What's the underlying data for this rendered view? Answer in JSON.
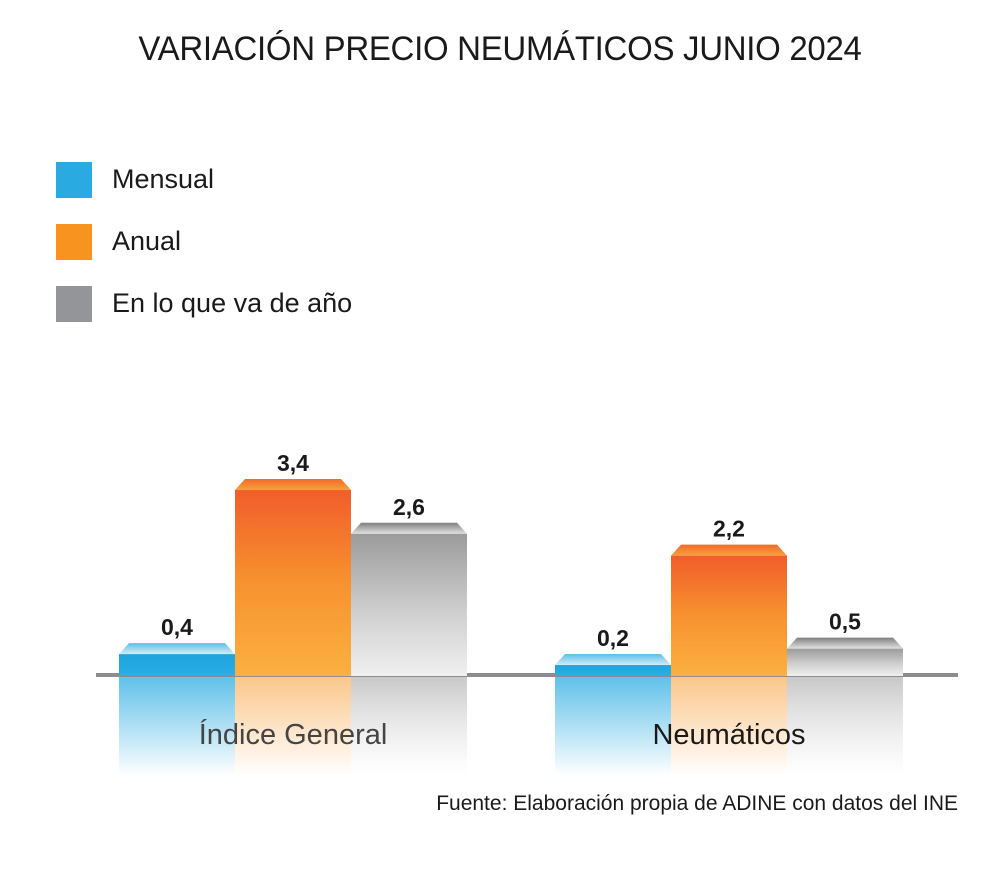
{
  "chart_data": {
    "type": "bar",
    "title": "VARIACIÓN PRECIO NEUMÁTICOS JUNIO 2024",
    "categories": [
      "Índice General",
      "Neumáticos"
    ],
    "series": [
      {
        "name": "Mensual",
        "color": "#29abe2",
        "values": [
          0.4,
          0.2
        ],
        "labels": [
          "0,4",
          "0,2"
        ]
      },
      {
        "name": "Anual",
        "color": "#f7931e",
        "values": [
          3.4,
          2.2
        ],
        "labels": [
          "3,4",
          "2,2"
        ]
      },
      {
        "name": "En lo que va de año",
        "color": "#939598",
        "values": [
          2.6,
          0.5
        ],
        "labels": [
          "2,6",
          "0,5"
        ]
      }
    ],
    "xlabel": "",
    "ylabel": "",
    "ylim": [
      0,
      3.4
    ],
    "grid": false,
    "legend_position": "top-left",
    "source": "Fuente: Elaboración propia de ADINE con datos del INE"
  }
}
